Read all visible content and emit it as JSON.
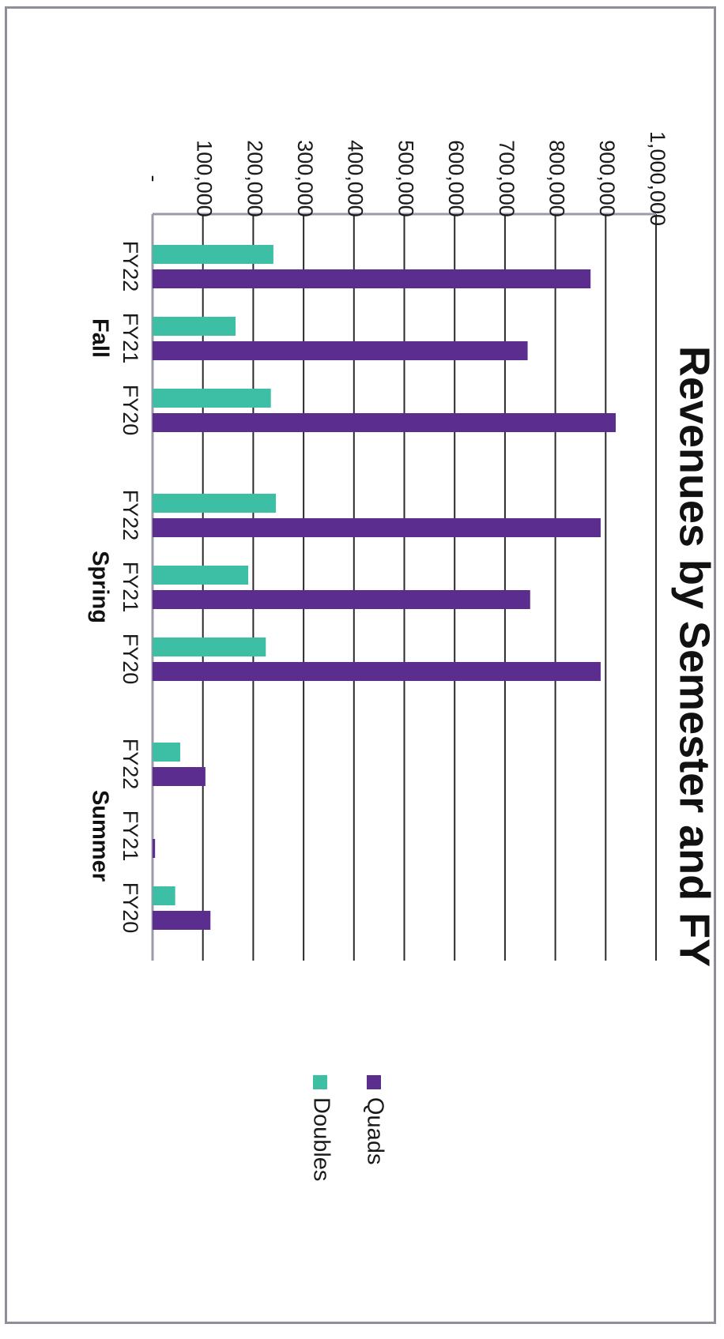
{
  "chart_data": {
    "type": "bar",
    "title": "Revenues by Semester and FY",
    "xlabel": "",
    "ylabel": "",
    "ylim": [
      0,
      1000000
    ],
    "y_ticks": [
      "-",
      "100,000",
      "200,000",
      "300,000",
      "400,000",
      "500,000",
      "600,000",
      "700,000",
      "800,000",
      "900,000",
      "1,000,000"
    ],
    "groups": [
      {
        "name": "Fall",
        "categories": [
          "FY22",
          "FY21",
          "FY20"
        ]
      },
      {
        "name": "Spring",
        "categories": [
          "FY22",
          "FY21",
          "FY20"
        ]
      },
      {
        "name": "Summer",
        "categories": [
          "FY22",
          "FY21",
          "FY20"
        ]
      }
    ],
    "series": [
      {
        "name": "Doubles",
        "color": "#3dbfa6",
        "values": [
          240000,
          165000,
          235000,
          245000,
          190000,
          225000,
          55000,
          0,
          45000
        ]
      },
      {
        "name": "Quads",
        "color": "#5b2d8e",
        "values": [
          870000,
          745000,
          920000,
          890000,
          750000,
          890000,
          105000,
          5000,
          115000
        ]
      }
    ],
    "grid": true,
    "legend": "right"
  }
}
